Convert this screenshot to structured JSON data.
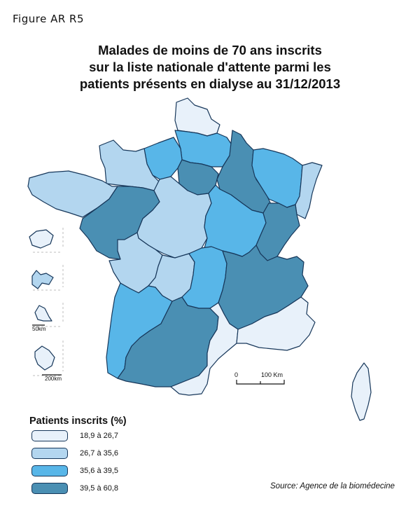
{
  "figure_label": "Figure AR R5",
  "title_lines": [
    "Malades de moins de 70 ans inscrits",
    "sur la liste nationale d'attente parmi les",
    "patients présents en dialyse au 31/12/2013"
  ],
  "colors": {
    "class1": "#e8f1fa",
    "class2": "#b3d6ef",
    "class3": "#58b6e8",
    "class4": "#4a8fb3",
    "border": "#17375a"
  },
  "scale_bar": {
    "start_label": "0",
    "end_label": "100 Km"
  },
  "insets": [
    {
      "scale_label": ""
    },
    {
      "scale_label": ""
    },
    {
      "scale_label": "50km"
    },
    {
      "scale_label": "200km"
    }
  ],
  "legend": {
    "title": "Patients inscrits (%)",
    "items": [
      {
        "label": "18,9 à 26,7",
        "color": "#e8f1fa"
      },
      {
        "label": "26,7 à 35,6",
        "color": "#b3d6ef"
      },
      {
        "label": "35,6 à 39,5",
        "color": "#58b6e8"
      },
      {
        "label": "39,5 à 60,8",
        "color": "#4a8fb3"
      }
    ]
  },
  "source": "Source: Agence de la biomédecine"
}
